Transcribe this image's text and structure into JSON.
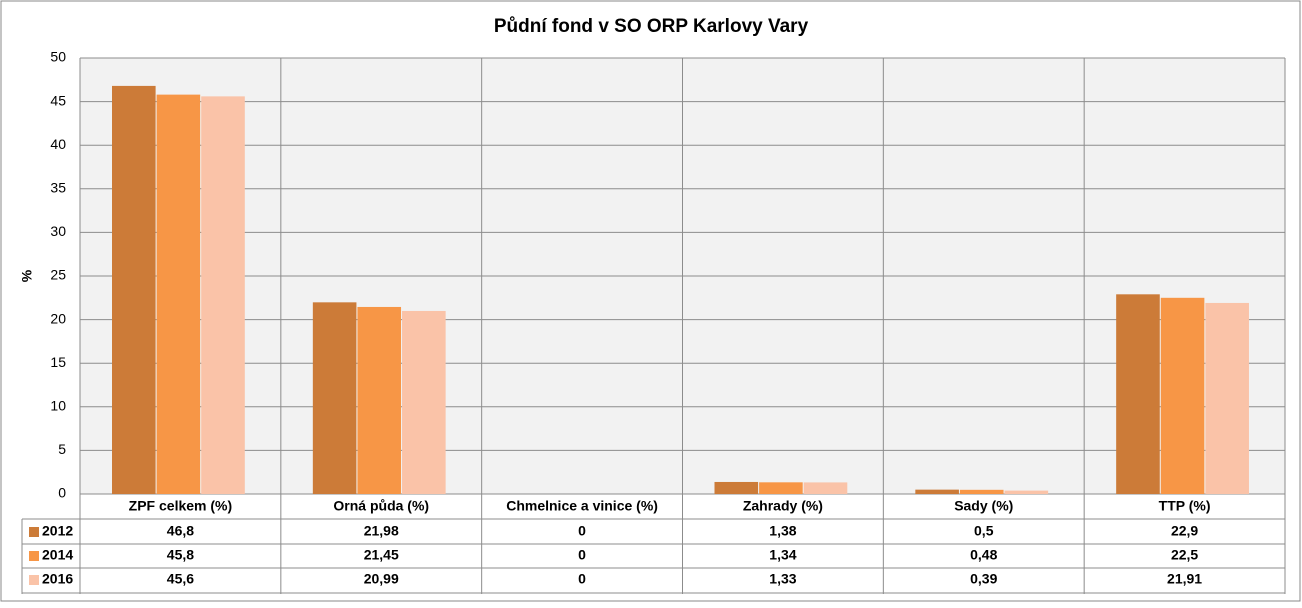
{
  "chart_data": {
    "type": "bar",
    "title": "Půdní fond v SO ORP Karlovy Vary",
    "y_label": "%",
    "categories": [
      "ZPF celkem (%)",
      "Orná půda (%)",
      "Chmelnice a vinice (%)",
      "Zahrady (%)",
      "Sady (%)",
      "TTP (%)"
    ],
    "series": [
      {
        "name": "2012",
        "color": "#cc7b38",
        "values": [
          46.8,
          21.98,
          0,
          1.38,
          0.5,
          22.9
        ],
        "value_labels": [
          "46,8",
          "21,98",
          "0",
          "1,38",
          "0,5",
          "22,9"
        ]
      },
      {
        "name": "2014",
        "color": "#f79646",
        "values": [
          45.8,
          21.45,
          0,
          1.34,
          0.48,
          22.5
        ],
        "value_labels": [
          "45,8",
          "21,45",
          "0",
          "1,34",
          "0,48",
          "22,5"
        ]
      },
      {
        "name": "2016",
        "color": "#fac3a8",
        "values": [
          45.6,
          20.99,
          0,
          1.33,
          0.39,
          21.91
        ],
        "value_labels": [
          "45,6",
          "20,99",
          "0",
          "1,33",
          "0,39",
          "21,91"
        ]
      }
    ],
    "ylim": [
      0,
      50
    ],
    "yticks": [
      0,
      5,
      10,
      15,
      20,
      25,
      30,
      35,
      40,
      45,
      50
    ],
    "grid": true
  }
}
